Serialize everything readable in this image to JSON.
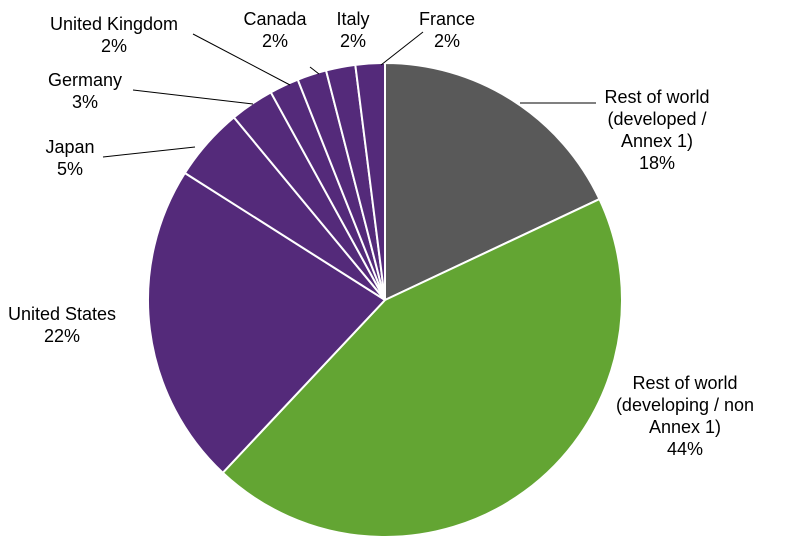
{
  "chart_data": {
    "type": "pie",
    "title": "",
    "start_angle_deg": 0,
    "direction": "clockwise",
    "slices": [
      {
        "name_lines": [
          "Rest of world",
          "(developed /",
          "Annex 1)"
        ],
        "value": 18,
        "value_label": "18%",
        "color": "#595959"
      },
      {
        "name_lines": [
          "Rest of world",
          "(developing / non",
          "Annex 1)"
        ],
        "value": 44,
        "value_label": "44%",
        "color": "#63A533"
      },
      {
        "name_lines": [
          "United States"
        ],
        "value": 22,
        "value_label": "22%",
        "color": "#542A7A"
      },
      {
        "name_lines": [
          "Japan"
        ],
        "value": 5,
        "value_label": "5%",
        "color": "#542A7A"
      },
      {
        "name_lines": [
          "Germany"
        ],
        "value": 3,
        "value_label": "3%",
        "color": "#542A7A"
      },
      {
        "name_lines": [
          "United Kingdom"
        ],
        "value": 2,
        "value_label": "2%",
        "color": "#542A7A"
      },
      {
        "name_lines": [
          "Canada"
        ],
        "value": 2,
        "value_label": "2%",
        "color": "#542A7A"
      },
      {
        "name_lines": [
          "Italy"
        ],
        "value": 2,
        "value_label": "2%",
        "color": "#542A7A"
      },
      {
        "name_lines": [
          "France"
        ],
        "value": 2,
        "value_label": "2%",
        "color": "#542A7A"
      }
    ]
  }
}
